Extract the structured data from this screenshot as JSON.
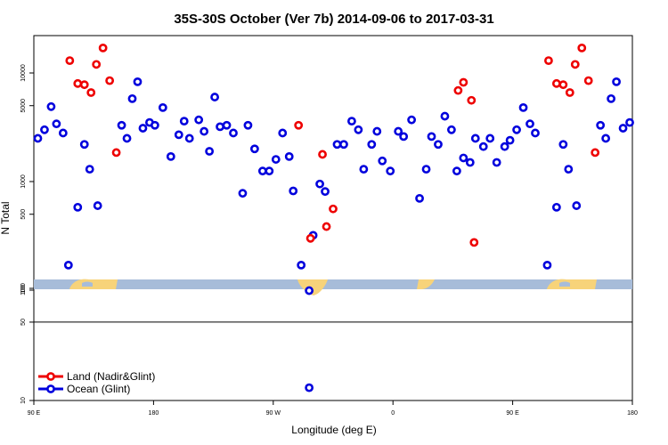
{
  "chart_data": {
    "type": "scatter",
    "title": "35S-30S October (Ver 7b)   2014-09-06 to 2017-03-31",
    "xlabel": "Longitude (deg E)",
    "ylabel": "N Total",
    "x_ticks": [
      {
        "value": 90,
        "label": "90 E"
      },
      {
        "value": 180,
        "label": "180"
      },
      {
        "value": 270,
        "label": "90 W"
      },
      {
        "value": 360,
        "label": "0"
      },
      {
        "value": 450,
        "label": "90 E"
      },
      {
        "value": 540,
        "label": "180"
      }
    ],
    "xlim": [
      90,
      540
    ],
    "y_scale": "log",
    "y_ticks_upper": [
      100,
      500,
      1000,
      5000,
      10000
    ],
    "y_ticks_lower": [
      10,
      50,
      100
    ],
    "grid": false,
    "legend_position": "bottom-left",
    "colors": {
      "land": "#ee0000",
      "ocean": "#0000dd",
      "band": "#a7bcd9",
      "landmass": "#f7d37a"
    },
    "series": [
      {
        "name": "Land (Nadir&Glint)",
        "color": "#ee0000",
        "points": [
          [
            117,
            13000
          ],
          [
            123,
            8000
          ],
          [
            128,
            7800
          ],
          [
            133,
            6600
          ],
          [
            137,
            12000
          ],
          [
            142,
            17000
          ],
          [
            147,
            8500
          ],
          [
            152,
            1850
          ],
          [
            289,
            3300
          ],
          [
            298,
            300
          ],
          [
            307,
            1780
          ],
          [
            310,
            385
          ],
          [
            315,
            560
          ],
          [
            409,
            6900
          ],
          [
            413,
            8200
          ],
          [
            419,
            5600
          ],
          [
            421,
            275
          ],
          [
            477,
            13000
          ],
          [
            483,
            8000
          ],
          [
            488,
            7800
          ],
          [
            493,
            6600
          ],
          [
            497,
            12000
          ],
          [
            502,
            17000
          ],
          [
            507,
            8500
          ],
          [
            512,
            1850
          ]
        ]
      },
      {
        "name": "Ocean (Glint)",
        "color": "#0000dd",
        "points": [
          [
            93,
            2500
          ],
          [
            98,
            3000
          ],
          [
            103,
            4900
          ],
          [
            107,
            3400
          ],
          [
            112,
            2800
          ],
          [
            116,
            170
          ],
          [
            123,
            580
          ],
          [
            128,
            2200
          ],
          [
            132,
            1300
          ],
          [
            138,
            600
          ],
          [
            156,
            3300
          ],
          [
            160,
            2500
          ],
          [
            164,
            5800
          ],
          [
            168,
            8300
          ],
          [
            172,
            3100
          ],
          [
            177,
            3500
          ],
          [
            181,
            3300
          ],
          [
            187,
            4800
          ],
          [
            193,
            1700
          ],
          [
            199,
            2700
          ],
          [
            203,
            3600
          ],
          [
            207,
            2500
          ],
          [
            214,
            3700
          ],
          [
            218,
            2900
          ],
          [
            222,
            1900
          ],
          [
            226,
            6000
          ],
          [
            230,
            3200
          ],
          [
            235,
            3300
          ],
          [
            240,
            2800
          ],
          [
            247,
            780
          ],
          [
            251,
            3300
          ],
          [
            256,
            2000
          ],
          [
            262,
            1250
          ],
          [
            267,
            1250
          ],
          [
            272,
            1600
          ],
          [
            277,
            2800
          ],
          [
            282,
            1700
          ],
          [
            285,
            820
          ],
          [
            291,
            170
          ],
          [
            297,
            90
          ],
          [
            300,
            320
          ],
          [
            305,
            950
          ],
          [
            309,
            810
          ],
          [
            318,
            2200
          ],
          [
            323,
            2200
          ],
          [
            329,
            3600
          ],
          [
            334,
            3000
          ],
          [
            338,
            1300
          ],
          [
            344,
            2200
          ],
          [
            348,
            2900
          ],
          [
            352,
            1550
          ],
          [
            358,
            1250
          ],
          [
            364,
            2900
          ],
          [
            368,
            2600
          ],
          [
            374,
            3700
          ],
          [
            380,
            700
          ],
          [
            385,
            1300
          ],
          [
            389,
            2600
          ],
          [
            394,
            2200
          ],
          [
            399,
            4000
          ],
          [
            404,
            3000
          ],
          [
            408,
            1250
          ],
          [
            413,
            1650
          ],
          [
            418,
            1500
          ],
          [
            422,
            2500
          ],
          [
            428,
            2100
          ],
          [
            433,
            2500
          ],
          [
            438,
            1500
          ],
          [
            444,
            2100
          ],
          [
            448,
            2400
          ],
          [
            453,
            3000
          ],
          [
            458,
            4800
          ],
          [
            463,
            3400
          ],
          [
            467,
            2800
          ],
          [
            476,
            170
          ],
          [
            483,
            580
          ],
          [
            488,
            2200
          ],
          [
            492,
            1300
          ],
          [
            498,
            600
          ],
          [
            516,
            3300
          ],
          [
            520,
            2500
          ],
          [
            524,
            5800
          ],
          [
            528,
            8300
          ],
          [
            533,
            3100
          ],
          [
            538,
            3500
          ]
        ],
        "lower_points": [
          [
            297,
            13
          ]
        ]
      }
    ]
  }
}
